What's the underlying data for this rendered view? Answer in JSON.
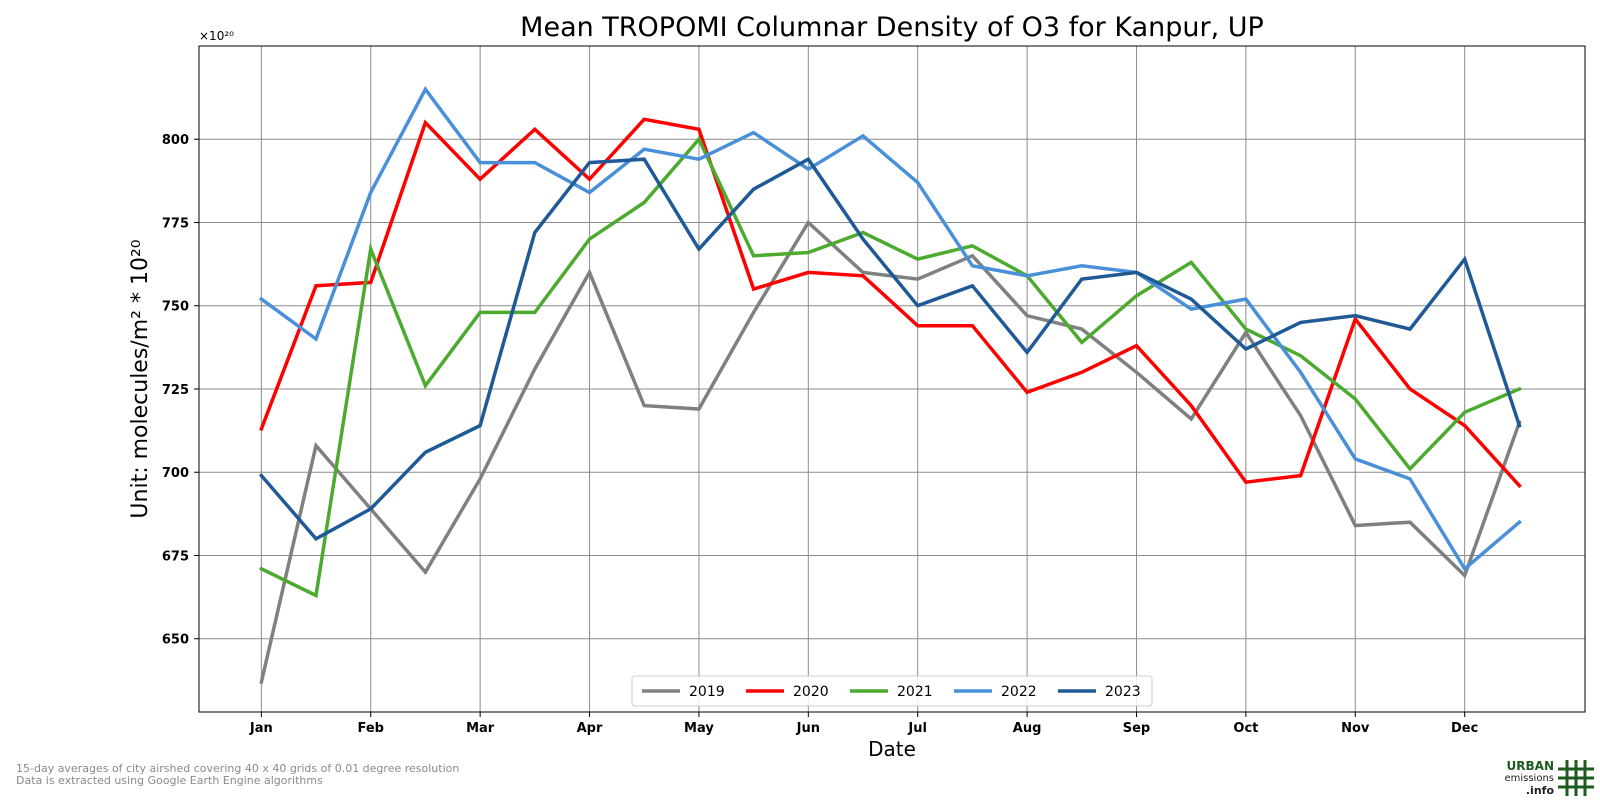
{
  "chart_data": {
    "type": "line",
    "title": "Mean TROPOMI Columnar Density of O3 for Kanpur, UP",
    "xlabel": "Date",
    "ylabel": "Unit: molecules/m² * 10²⁰",
    "y_multiplier_label": "×10²⁰",
    "x_ticks": [
      "Jan",
      "Feb",
      "Mar",
      "Apr",
      "May",
      "Jun",
      "Jul",
      "Aug",
      "Sep",
      "Oct",
      "Nov",
      "Dec"
    ],
    "x_points": [
      1,
      1.5,
      2,
      2.5,
      3,
      3.5,
      4,
      4.5,
      5,
      5.5,
      6,
      6.5,
      7,
      7.5,
      8,
      8.5,
      9,
      9.5,
      10,
      10.5,
      11,
      11.5,
      12,
      12.5
    ],
    "xlim": [
      0.43,
      13.1
    ],
    "y_ticks": [
      650,
      675,
      700,
      725,
      750,
      775,
      800
    ],
    "ylim": [
      628,
      828
    ],
    "grid": true,
    "legend_position": "bottom-center",
    "series": [
      {
        "name": "2019",
        "color": "#808080",
        "values": [
          637,
          708,
          689,
          670,
          698,
          731,
          760,
          720,
          719,
          748,
          775,
          760,
          758,
          765,
          747,
          743,
          730,
          716,
          742,
          717,
          684,
          685,
          669,
          715
        ]
      },
      {
        "name": "2020",
        "color": "#ff0000",
        "values": [
          713,
          756,
          757,
          805,
          788,
          803,
          788,
          806,
          803,
          755,
          760,
          759,
          744,
          744,
          724,
          730,
          738,
          720,
          697,
          699,
          746,
          725,
          714,
          696
        ]
      },
      {
        "name": "2021",
        "color": "#4caa2e",
        "values": [
          671,
          663,
          767,
          726,
          748,
          748,
          770,
          781,
          800,
          765,
          766,
          772,
          764,
          768,
          759,
          739,
          753,
          763,
          743,
          735,
          722,
          701,
          718,
          725
        ]
      },
      {
        "name": "2022",
        "color": "#4a90d9",
        "values": [
          752,
          740,
          784,
          815,
          793,
          793,
          784,
          797,
          794,
          802,
          791,
          801,
          787,
          762,
          759,
          762,
          760,
          749,
          752,
          730,
          704,
          698,
          671,
          685
        ]
      },
      {
        "name": "2023",
        "color": "#1f5a96",
        "values": [
          699,
          680,
          689,
          706,
          714,
          772,
          793,
          794,
          767,
          785,
          794,
          770,
          750,
          756,
          736,
          758,
          760,
          752,
          737,
          745,
          747,
          743,
          764,
          714
        ]
      }
    ]
  },
  "footnotes": [
    "15-day averages of city airshed covering 40 x 40 grids of 0.01 degree resolution",
    "Data is extracted using Google Earth Engine algorithms"
  ],
  "logo": {
    "line1": "URBAN",
    "line2": "emissions",
    "line3": ".info",
    "color": "#1e5a1e"
  }
}
